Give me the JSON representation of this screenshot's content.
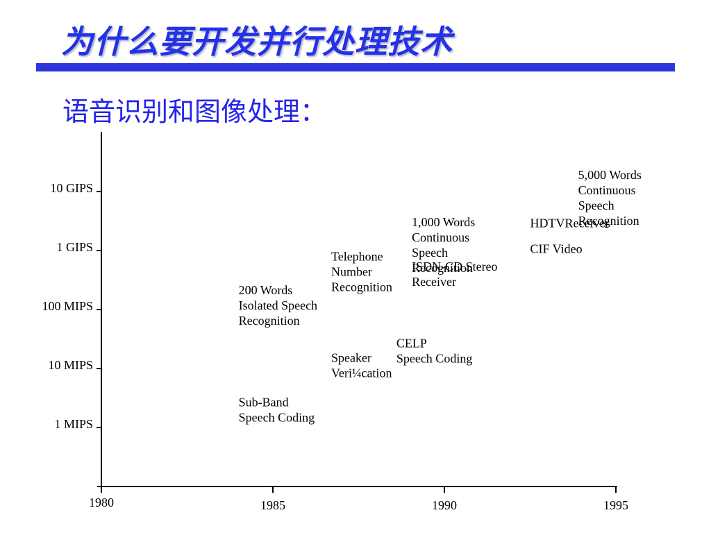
{
  "slide": {
    "title": "为什么要开发并行处理技术",
    "subtitle": "语音识别和图像处理：",
    "title_color": "#2432e6",
    "rule_color": "#2e35de"
  },
  "chart_data": {
    "type": "scatter",
    "title": "",
    "xlabel": "",
    "ylabel": "",
    "x_ticks": [
      "1980",
      "1985",
      "1990",
      "1995"
    ],
    "y_ticks": [
      "1 MIPS",
      "10 MIPS",
      "100 MIPS",
      "1 GIPS",
      "10 GIPS"
    ],
    "y_scale": "log",
    "xlim": [
      1980,
      1995
    ],
    "ylim_decades": [
      -1,
      5
    ],
    "annotations": [
      {
        "year": 1984,
        "decade": 0.55,
        "lines": [
          "Sub-Band",
          "Speech Coding"
        ]
      },
      {
        "year": 1984,
        "decade": 2.45,
        "lines": [
          "200 Words",
          "Isolated Speech",
          "Recognition"
        ]
      },
      {
        "year": 1986.7,
        "decade": 1.3,
        "lines": [
          "Speaker",
          "Veri¼cation"
        ]
      },
      {
        "year": 1986.7,
        "decade": 3.02,
        "lines": [
          "Telephone",
          "Number",
          "Recognition"
        ]
      },
      {
        "year": 1988.6,
        "decade": 1.55,
        "lines": [
          "CELP",
          "Speech Coding"
        ]
      },
      {
        "year": 1989.05,
        "decade": 2.85,
        "lines": [
          "ISDN-CD Stereo",
          "Receiver"
        ]
      },
      {
        "year": 1989.05,
        "decade": 3.6,
        "lines": [
          "1,000 Words",
          "Continuous",
          "Speech",
          "Recognition"
        ]
      },
      {
        "year": 1992.5,
        "decade": 3.15,
        "lines": [
          "CIF Video"
        ]
      },
      {
        "year": 1992.5,
        "decade": 3.58,
        "lines": [
          "HDTVReceiver"
        ]
      },
      {
        "year": 1993.9,
        "decade": 4.4,
        "lines": [
          "5,000  Words",
          "Continuous",
          "Speech",
          "Recognition"
        ]
      }
    ]
  }
}
